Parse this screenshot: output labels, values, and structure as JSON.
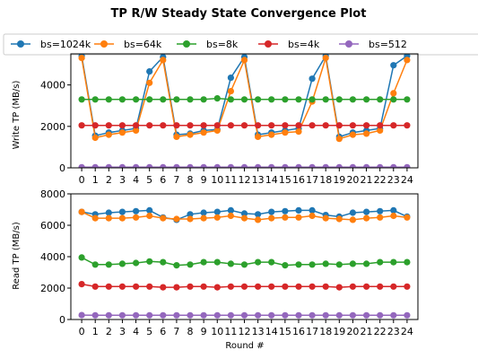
{
  "chart_data": {
    "title": "TP R/W Steady State Convergence Plot",
    "legend": {
      "placement": "top",
      "entries": [
        {
          "label": "bs=1024k",
          "color": "#1f77b4"
        },
        {
          "label": "bs=64k",
          "color": "#ff7f0e"
        },
        {
          "label": "bs=8k",
          "color": "#2ca02c"
        },
        {
          "label": "bs=4k",
          "color": "#d62728"
        },
        {
          "label": "bs=512",
          "color": "#9467bd"
        }
      ]
    },
    "x": [
      0,
      1,
      2,
      3,
      4,
      5,
      6,
      7,
      8,
      9,
      10,
      11,
      12,
      13,
      14,
      15,
      16,
      17,
      18,
      19,
      20,
      21,
      22,
      23,
      24
    ],
    "xlabel": "Round #",
    "subplots": [
      {
        "type": "line",
        "ylabel": "Write TP (MB/s)",
        "ylim": [
          0,
          5500
        ],
        "yticks": [
          0,
          2000,
          4000
        ],
        "series": [
          {
            "name": "bs=1024k",
            "color": "#1f77b4",
            "values": [
              5400,
              1550,
              1700,
              1800,
              1900,
              4650,
              5350,
              1600,
              1650,
              1800,
              1850,
              4350,
              5350,
              1600,
              1700,
              1800,
              1900,
              4300,
              5400,
              1500,
              1700,
              1800,
              1900,
              4950,
              5400
            ]
          },
          {
            "name": "bs=64k",
            "color": "#ff7f0e",
            "values": [
              5300,
              1450,
              1600,
              1700,
              1800,
              4100,
              5200,
              1500,
              1600,
              1700,
              1800,
              3700,
              5200,
              1500,
              1600,
              1700,
              1750,
              3200,
              5300,
              1400,
              1600,
              1650,
              1800,
              3600,
              5200
            ]
          },
          {
            "name": "bs=8k",
            "color": "#2ca02c",
            "values": [
              3300,
              3300,
              3300,
              3300,
              3300,
              3300,
              3300,
              3300,
              3300,
              3300,
              3350,
              3300,
              3300,
              3300,
              3300,
              3300,
              3300,
              3300,
              3300,
              3300,
              3300,
              3300,
              3300,
              3300,
              3300
            ]
          },
          {
            "name": "bs=4k",
            "color": "#d62728",
            "values": [
              2050,
              2050,
              2050,
              2050,
              2050,
              2050,
              2050,
              2050,
              2050,
              2050,
              2050,
              2050,
              2050,
              2050,
              2050,
              2050,
              2050,
              2050,
              2050,
              2050,
              2050,
              2050,
              2050,
              2050,
              2050
            ]
          },
          {
            "name": "bs=512",
            "color": "#9467bd",
            "values": [
              30,
              30,
              30,
              30,
              30,
              30,
              30,
              30,
              30,
              30,
              30,
              30,
              30,
              30,
              30,
              30,
              30,
              30,
              30,
              30,
              30,
              30,
              30,
              30,
              30
            ]
          }
        ]
      },
      {
        "type": "line",
        "ylabel": "Read TP (MB/s)",
        "ylim": [
          0,
          8000
        ],
        "yticks": [
          0,
          2000,
          4000,
          6000,
          8000
        ],
        "series": [
          {
            "name": "bs=1024k",
            "color": "#1f77b4",
            "values": [
              6850,
              6700,
              6800,
              6850,
              6900,
              6950,
              6500,
              6350,
              6700,
              6800,
              6850,
              6950,
              6750,
              6700,
              6850,
              6900,
              6950,
              6950,
              6650,
              6550,
              6800,
              6850,
              6900,
              6950,
              6550
            ]
          },
          {
            "name": "bs=64k",
            "color": "#ff7f0e",
            "values": [
              6850,
              6450,
              6450,
              6450,
              6500,
              6600,
              6450,
              6400,
              6400,
              6450,
              6500,
              6600,
              6450,
              6350,
              6450,
              6500,
              6500,
              6600,
              6450,
              6400,
              6350,
              6450,
              6500,
              6600,
              6500
            ]
          },
          {
            "name": "bs=8k",
            "color": "#2ca02c",
            "values": [
              3950,
              3500,
              3500,
              3550,
              3600,
              3700,
              3650,
              3450,
              3500,
              3650,
              3650,
              3550,
              3500,
              3650,
              3650,
              3450,
              3500,
              3500,
              3550,
              3500,
              3550,
              3550,
              3650,
              3650,
              3650
            ]
          },
          {
            "name": "bs=4k",
            "color": "#d62728",
            "values": [
              2250,
              2100,
              2100,
              2100,
              2100,
              2100,
              2050,
              2050,
              2100,
              2100,
              2050,
              2100,
              2100,
              2100,
              2100,
              2100,
              2100,
              2100,
              2100,
              2050,
              2100,
              2100,
              2100,
              2100,
              2100
            ]
          },
          {
            "name": "bs=512",
            "color": "#9467bd",
            "values": [
              280,
              270,
              270,
              270,
              270,
              270,
              270,
              270,
              270,
              270,
              270,
              270,
              270,
              270,
              270,
              270,
              270,
              270,
              270,
              270,
              270,
              270,
              270,
              270,
              270
            ]
          }
        ]
      }
    ]
  }
}
